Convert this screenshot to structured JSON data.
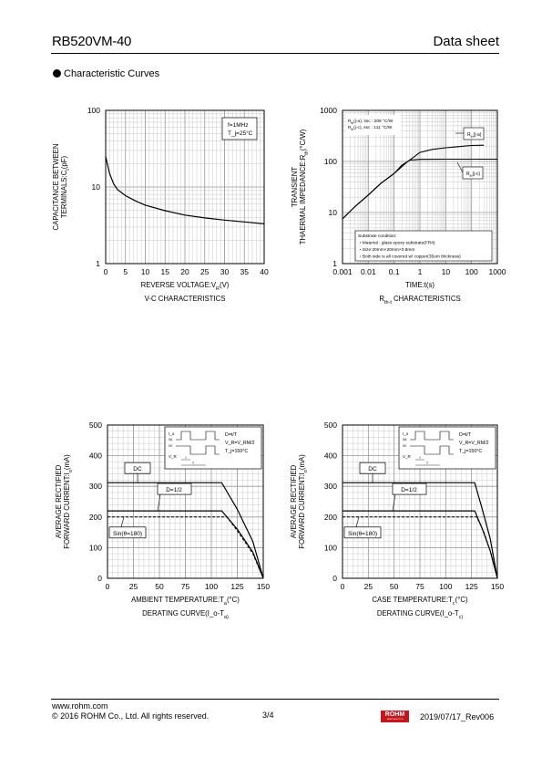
{
  "header": {
    "part": "RB520VM-40",
    "doc_type": "Data sheet"
  },
  "section": {
    "title": "Characteristic Curves"
  },
  "footer": {
    "url": "www.rohm.com",
    "copyright": "© 2016 ROHM Co., Ltd. All rights reserved.",
    "page": "3/4",
    "revision": "2019/07/17_Rev006",
    "logo": "ROHM",
    "logo_sub": "SEMICONDUCTOR"
  },
  "chart_data": [
    {
      "type": "line",
      "caption": "V₀-C₀ CHARACTERISTICS",
      "xlabel": "REVERSE VOLTAGE:V_R(V)",
      "ylabel_lines": [
        "CAPACITANCE BETWEEN",
        "TERMINALS:C_t(pF)"
      ],
      "xlim": [
        0,
        40
      ],
      "ylim": [
        1,
        100
      ],
      "yscale": "log",
      "xticks": [
        "0",
        "5",
        "10",
        "15",
        "20",
        "25",
        "30",
        "35",
        "40"
      ],
      "yticks": [
        "1",
        "10",
        "100"
      ],
      "annotation_lines": [
        "f=1MHz",
        "T_j=25°C"
      ],
      "series": [
        {
          "x": [
            0,
            1,
            2,
            3,
            5,
            7.5,
            10,
            15,
            20,
            25,
            30,
            35,
            40
          ],
          "y": [
            25,
            15,
            11,
            9.2,
            7.7,
            6.6,
            5.8,
            4.9,
            4.3,
            3.95,
            3.7,
            3.5,
            3.3
          ]
        }
      ]
    },
    {
      "type": "line",
      "caption": "R_th-t CHARACTERISTICS",
      "xlabel": "TIME:t(s)",
      "ylabel_lines": [
        "TRANSIENT",
        "THAERMAL IMPEDANCE:R_th(°C/W)"
      ],
      "xlim": [
        0.001,
        1000
      ],
      "ylim": [
        1,
        1000
      ],
      "xscale": "log",
      "yscale": "log",
      "xticks": [
        "0.001",
        "0.01",
        "0.1",
        "1",
        "10",
        "100",
        "1000"
      ],
      "yticks": [
        "1",
        "10",
        "100",
        "1000"
      ],
      "annotation_lines": [
        "R_th(j-a), ssc : 208 °C/W",
        "R_th(j-c), ssc : 111 °C/W"
      ],
      "substrate_lines": [
        "Substrate condition:",
        "・Material : glass epoxy substrate(FR4)",
        "・Size:20mm×20mm×0.8mm",
        "・Both side is all covered w/ copper(35um thickness)"
      ],
      "series": [
        {
          "name": "R_th(j-a)",
          "x": [
            0.001,
            0.003,
            0.01,
            0.03,
            0.1,
            0.3,
            1,
            3,
            10,
            30,
            100,
            300
          ],
          "y": [
            7.5,
            13,
            22,
            37,
            58,
            95,
            150,
            172,
            185,
            195,
            205,
            208
          ]
        },
        {
          "name": "R_th(j-c)",
          "x": [
            0.001,
            0.003,
            0.01,
            0.03,
            0.1,
            0.2,
            0.4,
            1,
            10,
            100,
            1000
          ],
          "y": [
            7.5,
            13,
            22,
            37,
            58,
            85,
            106,
            110,
            111,
            111,
            111
          ]
        }
      ]
    },
    {
      "type": "line",
      "caption": "DERATING CURVE(I_o-T_a)",
      "xlabel": "AMBIENT TEMPERATURE:T_a(°C)",
      "ylabel_lines": [
        "AVERAGE RECTIFIED",
        "FORWARD CURRENT:I_o(mA)"
      ],
      "xlim": [
        0,
        150
      ],
      "ylim": [
        0,
        500
      ],
      "xticks": [
        "0",
        "25",
        "50",
        "75",
        "100",
        "125",
        "150"
      ],
      "yticks": [
        "0",
        "100",
        "200",
        "300",
        "400",
        "500"
      ],
      "inset_lines": [
        "D=t/T",
        "V_R=V_RM/2",
        "T_j=150°C"
      ],
      "inset_labels": [
        "I_o",
        "0A",
        "0V",
        "V_R",
        "t",
        "T"
      ],
      "series": [
        {
          "name": "DC",
          "x": [
            0,
            110,
            125,
            140,
            150
          ],
          "y": [
            312,
            312,
            225,
            120,
            0
          ]
        },
        {
          "name": "D=1/2",
          "x": [
            0,
            110,
            125,
            140,
            150
          ],
          "y": [
            220,
            220,
            160,
            85,
            0
          ]
        },
        {
          "name": "Sin(θ=180)",
          "x": [
            0,
            115,
            125,
            140,
            150
          ],
          "y": [
            200,
            200,
            155,
            80,
            0
          ]
        }
      ]
    },
    {
      "type": "line",
      "caption": "DERATING CURVE(I_o-T_c)",
      "xlabel": "CASE TEMPERATURE:T_c(°C)",
      "ylabel_lines": [
        "AVERAGE RECTIFIED",
        "FORWARD CURRENT:I_o(mA)"
      ],
      "xlim": [
        0,
        150
      ],
      "ylim": [
        0,
        500
      ],
      "xticks": [
        "0",
        "25",
        "50",
        "75",
        "100",
        "125",
        "150"
      ],
      "yticks": [
        "0",
        "100",
        "200",
        "300",
        "400",
        "500"
      ],
      "inset_lines": [
        "D=t/T",
        "V_R=V_RM/2",
        "T_j=150°C"
      ],
      "inset_labels": [
        "I_o",
        "0A",
        "0V",
        "V_R",
        "t",
        "T"
      ],
      "series": [
        {
          "name": "DC",
          "x": [
            0,
            128,
            135,
            143,
            150
          ],
          "y": [
            312,
            312,
            230,
            130,
            0
          ]
        },
        {
          "name": "D=1/2",
          "x": [
            0,
            128,
            135,
            143,
            150
          ],
          "y": [
            220,
            220,
            165,
            90,
            0
          ]
        },
        {
          "name": "Sin(θ=180)",
          "x": [
            0,
            130,
            137,
            144,
            150
          ],
          "y": [
            200,
            200,
            150,
            80,
            0
          ]
        }
      ]
    }
  ]
}
